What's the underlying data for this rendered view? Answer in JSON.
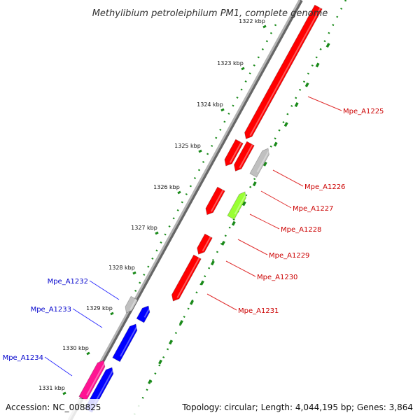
{
  "title": "Methylibium petroleiphilum PM1, complete genome",
  "accession": "Accession: NC_008825",
  "summary": "Topology: circular; Length: 4,044,195 bp; Genes: 3,864",
  "kbp_ticks": [
    "1322 kbp",
    "1323 kbp",
    "1324 kbp",
    "1325 kbp",
    "1326 kbp",
    "1327 kbp",
    "1328 kbp",
    "1329 kbp",
    "1330 kbp",
    "1331 kbp"
  ],
  "genes": [
    {
      "name": "Mpe_A1225",
      "color": "#ff0000",
      "strand": "reverse"
    },
    {
      "name": "Mpe_A1226",
      "color": "#c0c0c0",
      "strand": "forward"
    },
    {
      "name": "Mpe_A1227",
      "color": "#ff0000",
      "strand": "reverse"
    },
    {
      "name": "Mpe_A1228",
      "color": "#99ff33",
      "strand": "forward"
    },
    {
      "name": "Mpe_A1229",
      "color": "#ff0000",
      "strand": "reverse"
    },
    {
      "name": "Mpe_A1230",
      "color": "#ff0000",
      "strand": "reverse"
    },
    {
      "name": "Mpe_A1231",
      "color": "#ff0000",
      "strand": "reverse"
    },
    {
      "name": "Mpe_A1232",
      "color": "#c0c0c0",
      "strand": "reverse"
    },
    {
      "name": "Mpe_A1233",
      "color": "#0000ff",
      "strand": "forward"
    },
    {
      "name": "Mpe_A1234",
      "color": "#ff1493",
      "strand": "forward"
    }
  ],
  "colors": {
    "backbone": "#8c8c8c",
    "gc_dots": "#1a8a1a",
    "label_red": "#cc0000",
    "label_blue": "#0000cc",
    "leader_red": "#e03030",
    "leader_blue": "#3030ff"
  }
}
